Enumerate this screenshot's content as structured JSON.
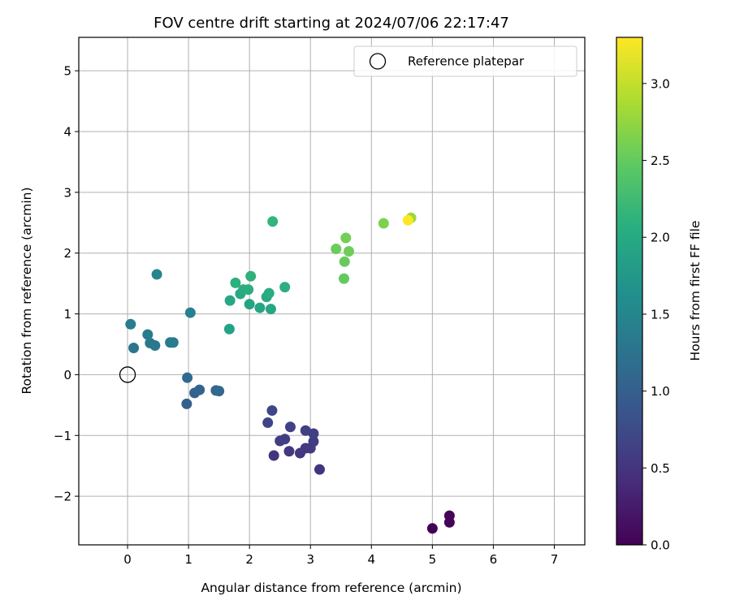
{
  "chart_data": {
    "type": "scatter",
    "title": "FOV centre drift starting at 2024/07/06 22:17:47",
    "xlabel": "Angular distance from reference (arcmin)",
    "ylabel": "Rotation from reference (arcmin)",
    "xlim": [
      -0.8,
      7.5
    ],
    "ylim": [
      -2.8,
      5.55
    ],
    "xticks": [
      0,
      1,
      2,
      3,
      4,
      5,
      6,
      7
    ],
    "yticks": [
      -2,
      -1,
      0,
      1,
      2,
      3,
      4,
      5
    ],
    "grid": true,
    "legend": {
      "position": "top-right",
      "label": "Reference platepar"
    },
    "reference_point": {
      "x": 0,
      "y": 0
    },
    "colorbar": {
      "label": "Hours from first FF file",
      "colormap": "viridis",
      "range": [
        0.0,
        3.3
      ],
      "ticks": [
        0.0,
        0.5,
        1.0,
        1.5,
        2.0,
        2.5,
        3.0
      ],
      "tick_labels": [
        "0.0",
        "0.5",
        "1.0",
        "1.5",
        "2.0",
        "2.5",
        "3.0"
      ]
    },
    "points": [
      {
        "x": 5.0,
        "y": -2.53,
        "c": 0.0
      },
      {
        "x": 5.28,
        "y": -2.43,
        "c": 0.03
      },
      {
        "x": 5.28,
        "y": -2.32,
        "c": 0.05
      },
      {
        "x": 3.15,
        "y": -1.56,
        "c": 0.5
      },
      {
        "x": 2.4,
        "y": -1.33,
        "c": 0.5
      },
      {
        "x": 2.65,
        "y": -1.26,
        "c": 0.52
      },
      {
        "x": 2.83,
        "y": -1.29,
        "c": 0.53
      },
      {
        "x": 2.92,
        "y": -1.21,
        "c": 0.55
      },
      {
        "x": 3.0,
        "y": -1.21,
        "c": 0.56
      },
      {
        "x": 3.05,
        "y": -1.1,
        "c": 0.57
      },
      {
        "x": 2.5,
        "y": -1.09,
        "c": 0.58
      },
      {
        "x": 2.58,
        "y": -1.06,
        "c": 0.6
      },
      {
        "x": 3.05,
        "y": -0.97,
        "c": 0.62
      },
      {
        "x": 2.92,
        "y": -0.92,
        "c": 0.63
      },
      {
        "x": 2.67,
        "y": -0.86,
        "c": 0.65
      },
      {
        "x": 2.3,
        "y": -0.79,
        "c": 0.67
      },
      {
        "x": 2.37,
        "y": -0.59,
        "c": 0.7
      },
      {
        "x": 0.97,
        "y": -0.48,
        "c": 1.0
      },
      {
        "x": 1.1,
        "y": -0.3,
        "c": 1.02
      },
      {
        "x": 1.18,
        "y": -0.25,
        "c": 1.05
      },
      {
        "x": 1.45,
        "y": -0.26,
        "c": 1.07
      },
      {
        "x": 1.5,
        "y": -0.27,
        "c": 1.1
      },
      {
        "x": 0.98,
        "y": -0.05,
        "c": 1.12
      },
      {
        "x": 0.1,
        "y": 0.44,
        "c": 1.3
      },
      {
        "x": 0.45,
        "y": 0.48,
        "c": 1.32
      },
      {
        "x": 0.37,
        "y": 0.52,
        "c": 1.33
      },
      {
        "x": 0.7,
        "y": 0.53,
        "c": 1.35
      },
      {
        "x": 0.75,
        "y": 0.53,
        "c": 1.37
      },
      {
        "x": 0.33,
        "y": 0.66,
        "c": 1.38
      },
      {
        "x": 0.05,
        "y": 0.83,
        "c": 1.4
      },
      {
        "x": 1.03,
        "y": 1.02,
        "c": 1.45
      },
      {
        "x": 0.48,
        "y": 1.65,
        "c": 1.5
      },
      {
        "x": 1.67,
        "y": 0.75,
        "c": 1.9
      },
      {
        "x": 2.0,
        "y": 1.16,
        "c": 1.92
      },
      {
        "x": 2.17,
        "y": 1.1,
        "c": 1.93
      },
      {
        "x": 2.35,
        "y": 1.08,
        "c": 1.95
      },
      {
        "x": 1.68,
        "y": 1.22,
        "c": 1.96
      },
      {
        "x": 2.28,
        "y": 1.28,
        "c": 1.98
      },
      {
        "x": 1.85,
        "y": 1.33,
        "c": 2.0
      },
      {
        "x": 2.32,
        "y": 1.34,
        "c": 2.02
      },
      {
        "x": 1.9,
        "y": 1.4,
        "c": 2.03
      },
      {
        "x": 1.98,
        "y": 1.4,
        "c": 2.05
      },
      {
        "x": 2.58,
        "y": 1.44,
        "c": 2.07
      },
      {
        "x": 1.77,
        "y": 1.51,
        "c": 2.08
      },
      {
        "x": 2.02,
        "y": 1.62,
        "c": 2.1
      },
      {
        "x": 2.38,
        "y": 2.52,
        "c": 2.15
      },
      {
        "x": 3.55,
        "y": 1.58,
        "c": 2.5
      },
      {
        "x": 3.56,
        "y": 1.86,
        "c": 2.52
      },
      {
        "x": 3.42,
        "y": 2.07,
        "c": 2.55
      },
      {
        "x": 3.63,
        "y": 2.03,
        "c": 2.57
      },
      {
        "x": 3.58,
        "y": 2.25,
        "c": 2.6
      },
      {
        "x": 4.2,
        "y": 2.49,
        "c": 2.65
      },
      {
        "x": 4.65,
        "y": 2.58,
        "c": 2.8
      },
      {
        "x": 4.6,
        "y": 2.54,
        "c": 3.3
      }
    ]
  }
}
